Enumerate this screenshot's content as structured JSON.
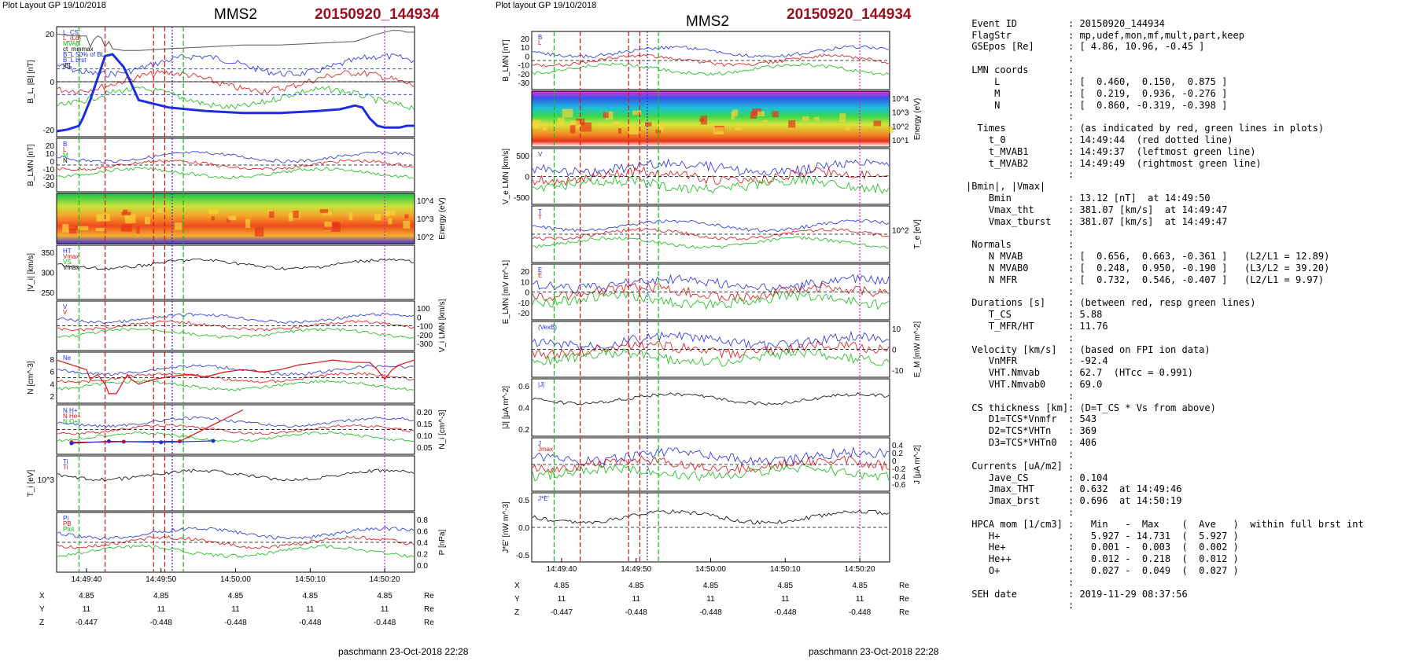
{
  "page": {
    "left_header": "Plot Layout GP 19/10/2018",
    "right_header": "Plot layout GP 19/10/2018",
    "spacecraft": "MMS2",
    "event_label": "20150920_144934",
    "footer": "paschmann 23-Oct-2018 22:28",
    "colors": {
      "event": "#9b0d1b",
      "red_line": "#dd1111",
      "green_line": "#11bb11",
      "blue_line": "#1f2de0",
      "magenta_line": "#cc22cc"
    }
  },
  "left_figure": {
    "panels": [
      {
        "id": "b-l",
        "ylabel": "B_L, |B| [nT]",
        "ylabel_side": "left",
        "ticks": [
          "20",
          "0",
          "-20"
        ],
        "legend": [
          "L_CS",
          "L_{Ld}",
          "MVAB",
          "ct_minmax",
          "B_L 50% of BL",
          "B_L brst",
          "|B|"
        ]
      },
      {
        "id": "b-lmn",
        "ylabel": "B_LMN [nT]",
        "ylabel_side": "left",
        "ticks": [
          "20",
          "10",
          "0",
          "-10",
          "-20",
          "-30"
        ],
        "legend": [
          "B",
          "L",
          "M",
          "N"
        ]
      },
      {
        "id": "energy",
        "ylabel": "Energy (eV)",
        "ylabel_side": "right",
        "ticks": [
          "10^4",
          "10^3",
          "10^2"
        ],
        "legend": []
      },
      {
        "id": "vi",
        "ylabel": "|V_i| [km/s]",
        "ylabel_side": "left",
        "ticks": [
          "350",
          "300",
          "250"
        ],
        "legend": [
          "HT",
          "Vmax",
          "VS",
          "Vmax"
        ]
      },
      {
        "id": "vi-lmn",
        "ylabel": "V_i LMN [km/s]",
        "ylabel_side": "right",
        "ticks": [
          "100",
          "0",
          "-100",
          "-200",
          "-300"
        ],
        "legend": [
          "V",
          "V"
        ]
      },
      {
        "id": "n",
        "ylabel": "N [cm^-3]",
        "ylabel_side": "left",
        "ticks": [
          "8",
          "6",
          "4",
          "2"
        ],
        "legend": [
          "Ne"
        ]
      },
      {
        "id": "ni",
        "ylabel": "N_i [cm^-3]",
        "ylabel_side": "right",
        "ticks": [
          "0.20",
          "0.15",
          "0.10",
          "0.05"
        ],
        "legend": [
          "N H+",
          "N He+",
          "N O+"
        ]
      },
      {
        "id": "ti",
        "ylabel": "T_i [eV]",
        "ylabel_side": "left",
        "ticks": [
          "10^3"
        ],
        "legend": [
          "Ti",
          "Ti"
        ]
      },
      {
        "id": "p",
        "ylabel": "P [nPa]",
        "ylabel_side": "right",
        "ticks": [
          "0.8",
          "0.6",
          "0.4",
          "0.2",
          "0.0"
        ],
        "legend": [
          "Pi",
          "PB",
          "Ptot"
        ]
      }
    ],
    "time_ticks": [
      "14:49:40",
      "14:49:50",
      "14:50:00",
      "14:50:10",
      "14:50:20"
    ],
    "coords": [
      {
        "label": "X",
        "values": [
          "4.85",
          "4.85",
          "4.85",
          "4.85",
          "4.85"
        ],
        "unit": "Re"
      },
      {
        "label": "Y",
        "values": [
          "11",
          "11",
          "11",
          "11",
          "11"
        ],
        "unit": "Re"
      },
      {
        "label": "Z",
        "values": [
          "-0.447",
          "-0.448",
          "-0.448",
          "-0.448",
          "-0.448"
        ],
        "unit": "Re"
      }
    ]
  },
  "right_figure": {
    "panels": [
      {
        "id": "b-lmn",
        "ylabel": "B_LMN [nT]",
        "ylabel_side": "left",
        "ticks": [
          "20",
          "10",
          "0",
          "-10",
          "-20",
          "-30"
        ],
        "legend": [
          "B",
          "L"
        ]
      },
      {
        "id": "energy-e",
        "ylabel": "Energy (eV)",
        "ylabel_side": "right",
        "ticks": [
          "10^4",
          "10^3",
          "10^2",
          "10^1"
        ],
        "legend": []
      },
      {
        "id": "ve",
        "ylabel": "V_e LMN [km/s]",
        "ylabel_side": "left",
        "ticks": [
          "500",
          "0",
          "-500"
        ],
        "legend": [
          "V"
        ]
      },
      {
        "id": "te",
        "ylabel": "T_e [eV]",
        "ylabel_side": "right",
        "ticks": [
          "10^2"
        ],
        "legend": [
          "T",
          "T"
        ]
      },
      {
        "id": "e-lmn",
        "ylabel": "E_LMN [mV m^-1]",
        "ylabel_side": "left",
        "ticks": [
          "20",
          "10",
          "0",
          "-10",
          "-20"
        ],
        "legend": [
          "E",
          "E"
        ]
      },
      {
        "id": "em",
        "ylabel": "E_M [mW m^-2]",
        "ylabel_side": "right",
        "ticks": [
          "10",
          "0",
          "-10"
        ],
        "legend": [
          "(VexB)"
        ]
      },
      {
        "id": "j",
        "ylabel": "|J| [µA m^-2]",
        "ylabel_side": "left",
        "ticks": [
          "0.6",
          "0.4",
          "0.2"
        ],
        "legend": [
          "|J|"
        ]
      },
      {
        "id": "j-lmn",
        "ylabel": "J [µA m^-2]",
        "ylabel_side": "right",
        "ticks": [
          "0.4",
          "0.2",
          "0",
          "-0.2",
          "-0.4",
          "-0.6"
        ],
        "legend": [
          "J",
          "Jmax"
        ]
      },
      {
        "id": "je",
        "ylabel": "J*E' [nW m^-3]",
        "ylabel_side": "left",
        "ticks": [
          "0.5",
          "0.0",
          "-0.5"
        ],
        "legend": [
          "J*E'"
        ]
      }
    ],
    "time_ticks": [
      "14:49:40",
      "14:49:50",
      "14:50:00",
      "14:50:10",
      "14:50:20"
    ],
    "coords": [
      {
        "label": "X",
        "values": [
          "4.85",
          "4.85",
          "4.85",
          "4.85",
          "4.85"
        ],
        "unit": "Re"
      },
      {
        "label": "Y",
        "values": [
          "11",
          "11",
          "11",
          "11",
          "11"
        ],
        "unit": "Re"
      },
      {
        "label": "Z",
        "values": [
          "-0.447",
          "-0.448",
          "-0.448",
          "-0.448",
          "-0.448"
        ],
        "unit": "Re"
      }
    ]
  },
  "summary": {
    "rows": [
      {
        "k": "",
        "v": ""
      },
      {
        "k": " Event ID",
        "v": ": 20150920_144934"
      },
      {
        "k": " FlagStr",
        "v": ": mp,udef,mon,mf,mult,part,keep"
      },
      {
        "k": " GSEpos [Re]",
        "v": ": [ 4.86, 10.96, -0.45 ]"
      },
      {
        "k": "",
        "v": ":"
      },
      {
        "k": " LMN coords",
        "v": ":"
      },
      {
        "k": "     L",
        "v": ": [  0.460,  0.150,  0.875 ]"
      },
      {
        "k": "     M",
        "v": ": [  0.219,  0.936, -0.276 ]"
      },
      {
        "k": "     N",
        "v": ": [  0.860, -0.319, -0.398 ]"
      },
      {
        "k": "",
        "v": ":"
      },
      {
        "k": "  Times",
        "v": ": (as indicated by red, green lines in plots)"
      },
      {
        "k": "    t_0",
        "v": ": 14:49:44  (red dotted line)"
      },
      {
        "k": "    t_MVAB1",
        "v": ": 14:49:37  (leftmost green line)"
      },
      {
        "k": "    t_MVAB2",
        "v": ": 14:49:49  (rightmost green line)"
      },
      {
        "k": "",
        "v": ":"
      },
      {
        "k": "|Bmin|, |Vmax|",
        "v": ""
      },
      {
        "k": "    Bmin",
        "v": ": 13.12 [nT]  at 14:49:50"
      },
      {
        "k": "    Vmax_tht",
        "v": ": 381.07 [km/s]  at 14:49:47"
      },
      {
        "k": "    Vmax_tburst",
        "v": ": 381.07 [km/s]  at 14:49:47"
      },
      {
        "k": "",
        "v": ":"
      },
      {
        "k": " Normals",
        "v": ":"
      },
      {
        "k": "    N MVAB",
        "v": ": [  0.656,  0.663, -0.361 ]   (L2/L1 = 12.89)"
      },
      {
        "k": "    N MVAB0",
        "v": ": [  0.248,  0.950, -0.190 ]   (L3/L2 = 39.20)"
      },
      {
        "k": "    N MFR",
        "v": ": [  0.732,  0.546, -0.407 ]   (L2/L1 = 9.97)"
      },
      {
        "k": "",
        "v": ":"
      },
      {
        "k": " Durations [s]",
        "v": ": (between red, resp green lines)"
      },
      {
        "k": "    T_CS",
        "v": ": 5.88"
      },
      {
        "k": "    T_MFR/HT",
        "v": ": 11.76"
      },
      {
        "k": "",
        "v": ":"
      },
      {
        "k": " Velocity [km/s]",
        "v": ": (based on FPI ion data)"
      },
      {
        "k": "    VnMFR",
        "v": ": -92.4"
      },
      {
        "k": "    VHT.Nmvab",
        "v": ": 62.7  (HTcc = 0.991)"
      },
      {
        "k": "    VHT.Nmvab0",
        "v": ": 69.0"
      },
      {
        "k": "",
        "v": ":"
      },
      {
        "k": " CS thickness [km]",
        "v": ": (D=T_CS * Vs from above)"
      },
      {
        "k": "    D1=TCS*Vnmfr",
        "v": ": 543"
      },
      {
        "k": "    D2=TCS*VHTn",
        "v": ": 369"
      },
      {
        "k": "    D3=TCS*VHTn0",
        "v": ": 406"
      },
      {
        "k": "",
        "v": ":"
      },
      {
        "k": " Currents [uA/m2]",
        "v": ":"
      },
      {
        "k": "    Jave_CS",
        "v": ": 0.104"
      },
      {
        "k": "    Jmax_THT",
        "v": ": 0.632  at 14:49:46"
      },
      {
        "k": "    Jmax_brst",
        "v": ": 0.696  at 14:50:19"
      },
      {
        "k": "",
        "v": ":"
      },
      {
        "k": " HPCA mom [1/cm3]",
        "v": ":   Min   -  Max    (  Ave   )  within full brst int"
      },
      {
        "k": "    H+",
        "v": ":   5.927 - 14.731  (  5.927 )"
      },
      {
        "k": "    He+",
        "v": ":   0.001 -  0.003  (  0.002 )"
      },
      {
        "k": "    He++",
        "v": ":   0.012 -  0.218  (  0.012 )"
      },
      {
        "k": "    O+",
        "v": ":   0.027 -  0.049  (  0.027 )"
      },
      {
        "k": "",
        "v": ":"
      },
      {
        "k": " SEH date",
        "v": ": 2019-11-29 08:37:56"
      },
      {
        "k": "",
        "v": ":"
      }
    ]
  },
  "chart_data": {
    "type": "line",
    "x_ticks": [
      "14:49:40",
      "14:49:50",
      "14:50:00",
      "14:50:10",
      "14:50:20"
    ],
    "event_times": {
      "t_0": "14:49:44",
      "t_MVAB1": "14:49:37",
      "t_MVAB2": "14:49:49"
    },
    "left_bl_smooth": {
      "x_sec": [
        0,
        3,
        6,
        7,
        9,
        12,
        13,
        15,
        18,
        22,
        30,
        40,
        50,
        60,
        70,
        76,
        78,
        80,
        82,
        84,
        86,
        88,
        90,
        92,
        94,
        96
      ],
      "values": [
        -27,
        -26,
        -24,
        -20,
        -10,
        8,
        14,
        15,
        8,
        -10,
        -14,
        -16,
        -17,
        -17,
        -16,
        -15,
        -14,
        -13,
        -14,
        -20,
        -24,
        -25,
        -25,
        -25,
        -24,
        -24
      ]
    },
    "left_btot": {
      "x_sec": [
        0,
        5,
        8,
        9,
        10,
        11,
        12,
        13,
        14,
        15,
        18,
        22,
        30,
        40,
        50,
        60,
        70,
        80,
        86,
        90,
        92,
        94,
        96
      ],
      "values": [
        26,
        25,
        25,
        19,
        23,
        25,
        24,
        19,
        22,
        18,
        17,
        17,
        18,
        19,
        20,
        20,
        21,
        22,
        26,
        28,
        28,
        27,
        27
      ]
    },
    "left_n": {
      "x_sec": [
        0,
        4,
        8,
        9,
        11,
        13,
        14,
        16,
        19,
        20,
        22,
        26,
        30,
        35,
        40,
        45,
        50,
        55,
        60,
        65,
        70,
        74,
        80,
        84,
        86,
        88,
        90,
        92,
        96
      ],
      "values": [
        8,
        7,
        6,
        4,
        5,
        3,
        1,
        1,
        5,
        4,
        3,
        4,
        4.5,
        5,
        4.5,
        5.5,
        6,
        5.5,
        6,
        7,
        7.5,
        8,
        7.5,
        7.5,
        6,
        4,
        6,
        7,
        8
      ]
    },
    "left_ni_hplus": {
      "x_sec": [
        4,
        18,
        33
      ],
      "values": [
        0.045,
        0.048,
        0.05
      ]
    },
    "left_ni_heplus": {
      "x_sec": [
        4,
        14,
        28,
        42
      ],
      "values": [
        0.04,
        0.05,
        0.045,
        0.052
      ]
    }
  }
}
